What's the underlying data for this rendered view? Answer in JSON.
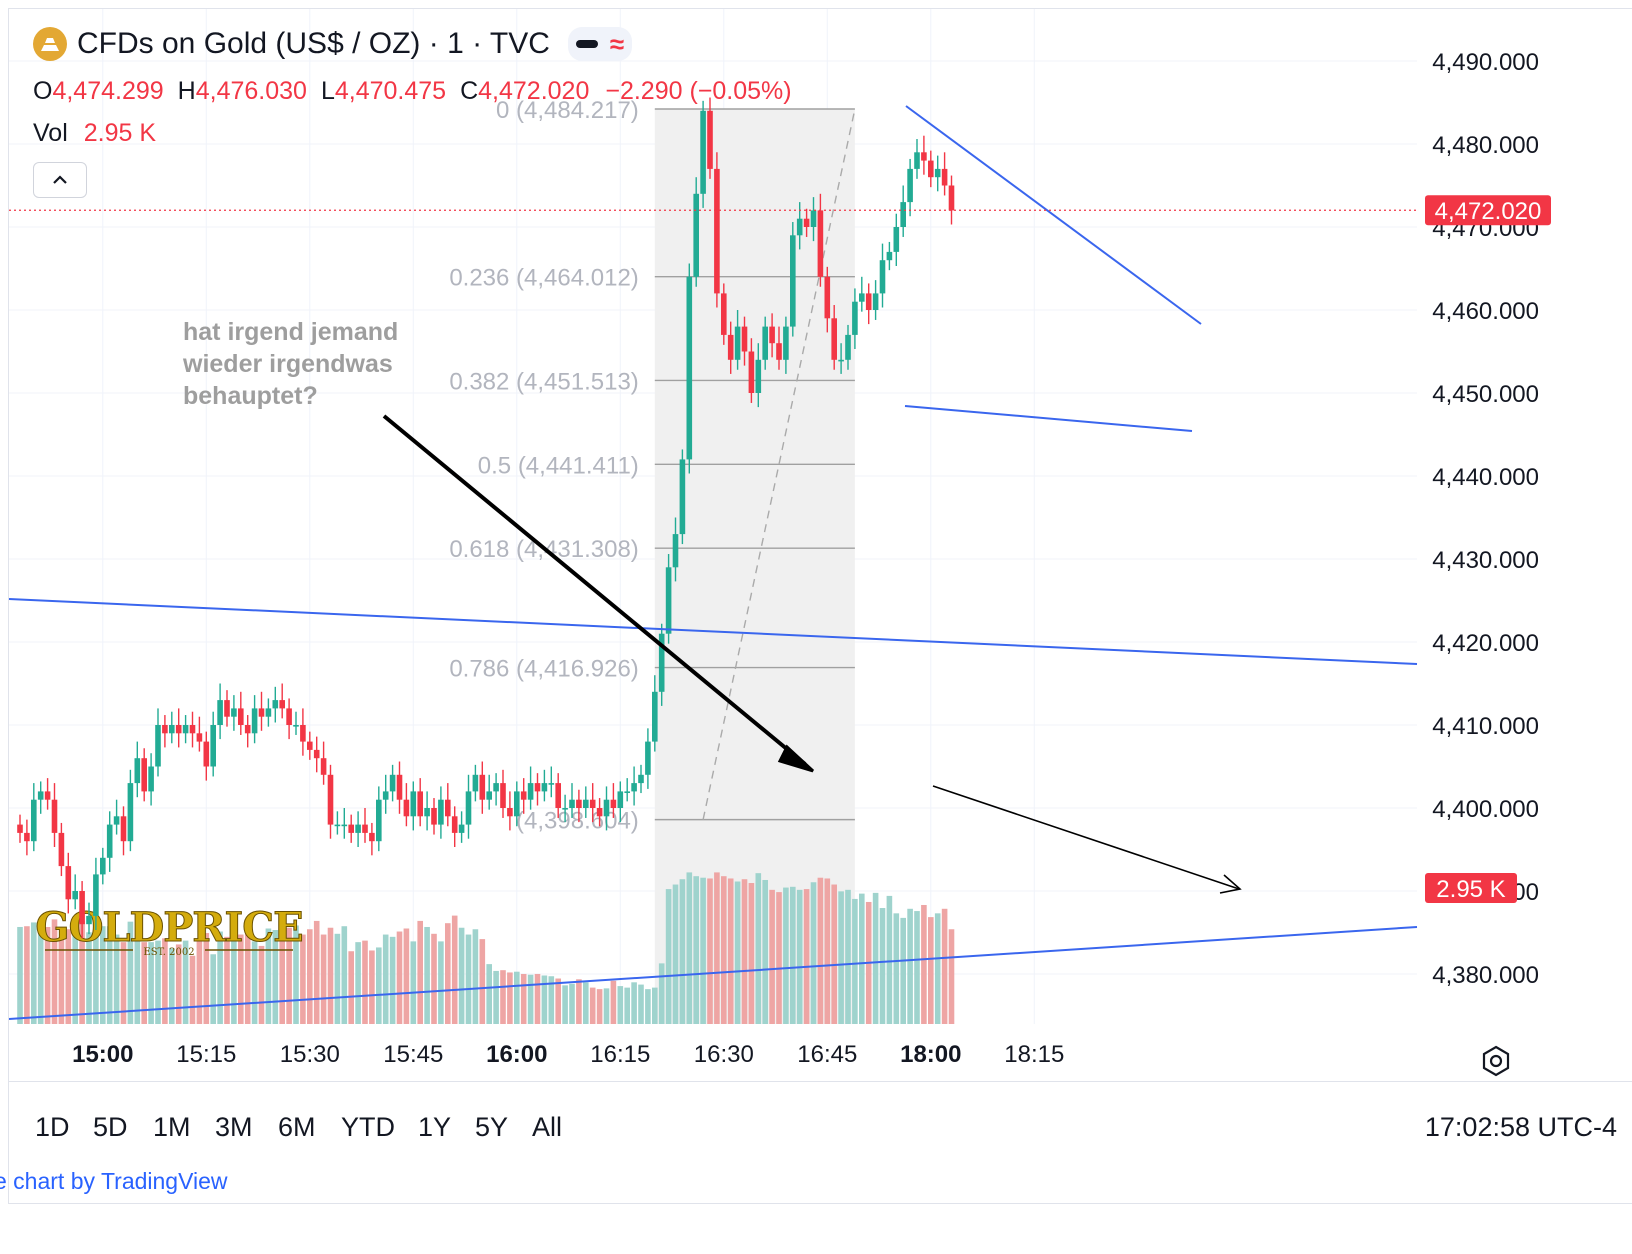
{
  "header": {
    "title": "CFDs on Gold (US$ / OZ) · 1 · TVC",
    "ohlc": [
      {
        "k": "O",
        "v": "4,474.299"
      },
      {
        "k": "H",
        "v": "4,476.030"
      },
      {
        "k": "L",
        "v": "4,470.475"
      },
      {
        "k": "C",
        "v": "4,472.020"
      }
    ],
    "change": "−2.290 (−0.05%)",
    "vol_label": "Vol",
    "vol_value": "2.95 K",
    "icons": {
      "logo": "gold-bars-icon",
      "collapse": "chevron-up-icon",
      "approx": "approx-icon",
      "settings": "gear-icon"
    }
  },
  "range_bar": {
    "items": [
      "1D",
      "5D",
      "1M",
      "3M",
      "6M",
      "YTD",
      "1Y",
      "5Y",
      "All"
    ],
    "clock": "17:02:58 UTC-4"
  },
  "attribution": "e chart by TradingView",
  "watermark": "GOLDPRICE",
  "watermark_sub": "EST. 2002",
  "colors": {
    "up": "#22ab94",
    "down": "#f23645",
    "vol_up": "#9fd3cd",
    "vol_down": "#eea5a4",
    "trendline": "#3a66ee",
    "annotation": "#9e9e9e",
    "fib_band": "#f0f0f0"
  },
  "chart_data": {
    "type": "candlestick",
    "ylim": [
      4373,
      4496
    ],
    "y_ticks": [
      "4,490.000",
      "4,480.000",
      "4,470.000",
      "4,460.000",
      "4,450.000",
      "4,440.000",
      "4,430.000",
      "4,420.000",
      "4,410.000",
      "4,400.000",
      "4,390.000",
      "4,380.000"
    ],
    "y_tick_values": [
      4490,
      4480,
      4470,
      4460,
      4450,
      4440,
      4430,
      4420,
      4410,
      4400,
      4390,
      4380
    ],
    "x_ticks": [
      {
        "label": "15:00",
        "bold": true,
        "bar": 12
      },
      {
        "label": "15:15",
        "bold": false,
        "bar": 27
      },
      {
        "label": "15:30",
        "bold": false,
        "bar": 42
      },
      {
        "label": "15:45",
        "bold": false,
        "bar": 57
      },
      {
        "label": "16:00",
        "bold": true,
        "bar": 72
      },
      {
        "label": "16:15",
        "bold": false,
        "bar": 87
      },
      {
        "label": "16:30",
        "bold": false,
        "bar": 102
      },
      {
        "label": "16:45",
        "bold": false,
        "bar": 117
      },
      {
        "label": "18:00",
        "bold": true,
        "bar": 132
      },
      {
        "label": "18:15",
        "bold": false,
        "bar": 147
      }
    ],
    "last_price": {
      "value": 4472.02,
      "label": "4,472.020"
    },
    "volume_label": {
      "value": 2950,
      "label": "2.95 K"
    },
    "close": [
      4397,
      4396,
      4401,
      4402,
      4401,
      4397,
      4393,
      4389,
      4390,
      4386,
      4387,
      4392,
      4394,
      4398,
      4399,
      4396,
      4403,
      4406,
      4402,
      4405,
      4410,
      4409,
      4410,
      4409,
      4410,
      4409,
      4408,
      4405,
      4410,
      4413,
      4411,
      4412,
      4410,
      4409,
      4412,
      4411,
      4412,
      4413,
      4412,
      4410,
      4410,
      4408,
      4407,
      4406,
      4404,
      4398,
      4398,
      4398,
      4397,
      4398,
      4397,
      4396,
      4401,
      4402,
      4404,
      4401,
      4399,
      4402,
      4399,
      4400,
      4398,
      4401,
      4399,
      4397,
      4398,
      4402,
      4404,
      4401,
      4402,
      4403,
      4400,
      4399,
      4402,
      4401,
      4403,
      4402,
      4403,
      4403,
      4400,
      4400,
      4401,
      4400,
      4401,
      4400,
      4399,
      4401,
      4400,
      4402,
      4402,
      4403,
      4404,
      4408,
      4414,
      4421,
      4429,
      4433,
      4442,
      4464,
      4474,
      4484,
      4477,
      4462,
      4457,
      4454,
      4458,
      4455,
      4450,
      4454,
      4458,
      4456,
      4454,
      4458,
      4469,
      4471,
      4470,
      4472,
      4464,
      4459,
      4454,
      4454,
      4457,
      4461,
      4462,
      4460,
      4462,
      4466,
      4467,
      4470,
      4473,
      4477,
      4479,
      4478,
      4476,
      4477,
      4475,
      4472
    ],
    "volume": [
      2980,
      2990,
      3040,
      3030,
      2980,
      3080,
      2850,
      2950,
      3040,
      3060,
      2910,
      3040,
      2990,
      2990,
      2880,
      2780,
      3050,
      2790,
      2780,
      2780,
      2800,
      2830,
      2700,
      2750,
      2800,
      2600,
      2800,
      2900,
      2620,
      2920,
      2850,
      2910,
      2880,
      2910,
      2790,
      2730,
      2960,
      2940,
      2830,
      2970,
      3000,
      2880,
      2950,
      3060,
      2880,
      2970,
      2890,
      2990,
      2660,
      2780,
      2800,
      2670,
      2710,
      2880,
      2850,
      2920,
      2960,
      2790,
      3060,
      2980,
      2890,
      2790,
      3030,
      3130,
      2970,
      2880,
      2950,
      2820,
      2490,
      2400,
      2410,
      2380,
      2390,
      2360,
      2350,
      2360,
      2340,
      2330,
      2300,
      2210,
      2230,
      2290,
      2250,
      2180,
      2160,
      2170,
      2270,
      2200,
      2180,
      2250,
      2220,
      2160,
      2180,
      2500,
      3480,
      3540,
      3610,
      3700,
      3650,
      3630,
      3620,
      3700,
      3650,
      3620,
      3580,
      3610,
      3560,
      3690,
      3600,
      3470,
      3440,
      3500,
      3510,
      3470,
      3480,
      3570,
      3630,
      3620,
      3540,
      3450,
      3470,
      3350,
      3420,
      3310,
      3430,
      3230,
      3390,
      3160,
      3100,
      3220,
      3190,
      3270,
      3110,
      3160,
      3220,
      2950
    ],
    "fib_levels": [
      {
        "ratio": "0",
        "price": 4484.217,
        "label": "0 (4,484.217)"
      },
      {
        "ratio": "0.236",
        "price": 4464.012,
        "label": "0.236 (4,464.012)"
      },
      {
        "ratio": "0.382",
        "price": 4451.513,
        "label": "0.382 (4,451.513)"
      },
      {
        "ratio": "0.5",
        "price": 4441.411,
        "label": "0.5 (4,441.411)"
      },
      {
        "ratio": "0.618",
        "price": 4431.308,
        "label": "0.618 (4,431.308)"
      },
      {
        "ratio": "0.786",
        "price": 4416.926,
        "label": "0.786 (4,416.926)"
      },
      {
        "ratio": "1",
        "price": 4398.6,
        "label": "(4,398.604)"
      }
    ],
    "annotations": [
      {
        "text": "hat irgend jemand"
      },
      {
        "text": "wieder irgendwas"
      },
      {
        "text": "behauptet?"
      }
    ]
  }
}
